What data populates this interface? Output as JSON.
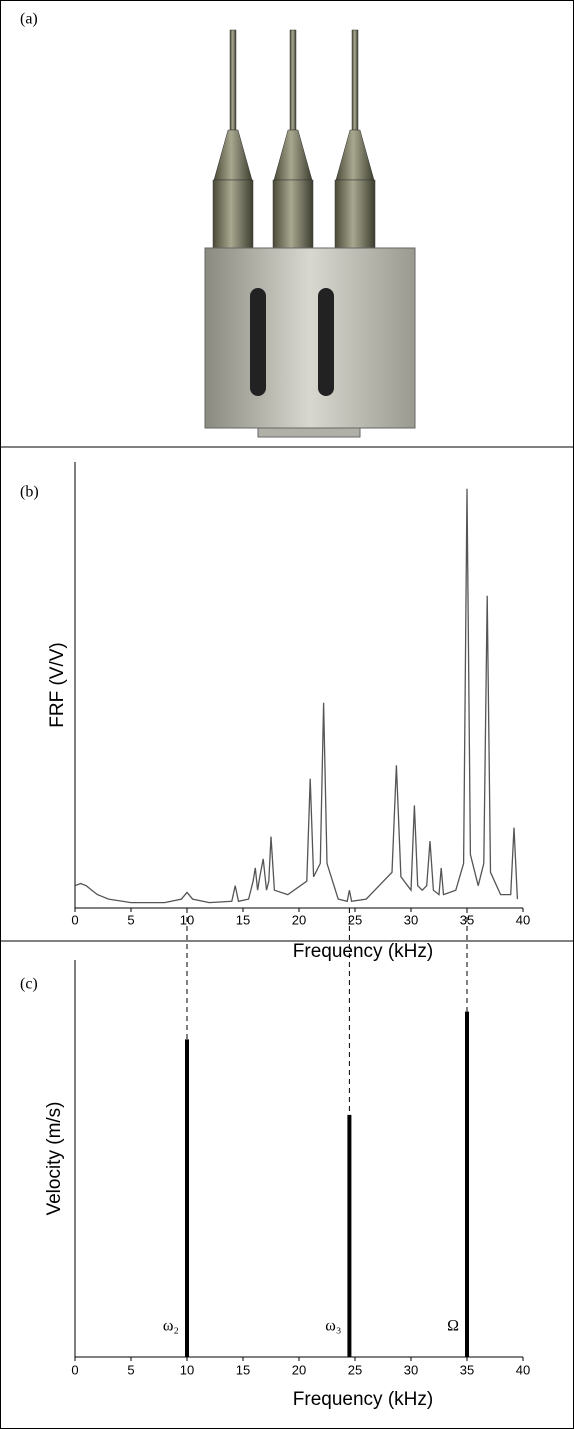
{
  "panel_labels": [
    "(a)",
    "(b)",
    "(c)"
  ],
  "chart_data": [
    {
      "type": "line",
      "ylabel": "FRF (V/V)",
      "xlabel": "Frequency (kHz)",
      "color": "#555555",
      "x": [
        0,
        0.5,
        1,
        1.5,
        2,
        3,
        5,
        8,
        9.5,
        10,
        10.5,
        12,
        14,
        14.3,
        14.6,
        15.5,
        15.9,
        16.1,
        16.3,
        16.5,
        16.8,
        17.1,
        17.3,
        17.5,
        17.8,
        19,
        20.7,
        21,
        21.3,
        21.9,
        22.2,
        22.5,
        23.5,
        24.3,
        24.5,
        24.7,
        26,
        28.3,
        28.7,
        29.1,
        30,
        30.3,
        30.6,
        31,
        31.4,
        31.7,
        32,
        32.5,
        32.7,
        32.9,
        34,
        34.7,
        35,
        35.3,
        36,
        36.5,
        36.8,
        37.1,
        38,
        38.9,
        39.2,
        39.5
      ],
      "values": [
        0.05,
        0.055,
        0.05,
        0.04,
        0.03,
        0.02,
        0.012,
        0.012,
        0.02,
        0.035,
        0.02,
        0.012,
        0.015,
        0.05,
        0.015,
        0.02,
        0.06,
        0.09,
        0.04,
        0.07,
        0.11,
        0.04,
        0.06,
        0.16,
        0.04,
        0.03,
        0.06,
        0.29,
        0.07,
        0.1,
        0.46,
        0.1,
        0.02,
        0.015,
        0.04,
        0.015,
        0.02,
        0.08,
        0.32,
        0.07,
        0.04,
        0.23,
        0.05,
        0.04,
        0.05,
        0.15,
        0.04,
        0.03,
        0.09,
        0.03,
        0.04,
        0.1,
        0.94,
        0.12,
        0.05,
        0.1,
        0.7,
        0.08,
        0.03,
        0.03,
        0.18,
        0.02
      ],
      "xlim": [
        0,
        40
      ],
      "xticks": [
        0,
        5,
        10,
        15,
        20,
        25,
        30,
        35,
        40
      ],
      "ylim": [
        0,
        1
      ]
    },
    {
      "type": "stem",
      "ylabel": "Velocity (m/s)",
      "xlabel": "Frequency (kHz)",
      "color": "#000000",
      "categories": [
        "ω₂",
        "ω₃",
        "Ω"
      ],
      "x": [
        10,
        24.5,
        35
      ],
      "values": [
        0.8,
        0.61,
        0.87
      ],
      "xlim": [
        0,
        40
      ],
      "xticks": [
        0,
        5,
        10,
        15,
        20,
        25,
        30,
        35,
        40
      ],
      "ylim": [
        0,
        1
      ]
    }
  ]
}
